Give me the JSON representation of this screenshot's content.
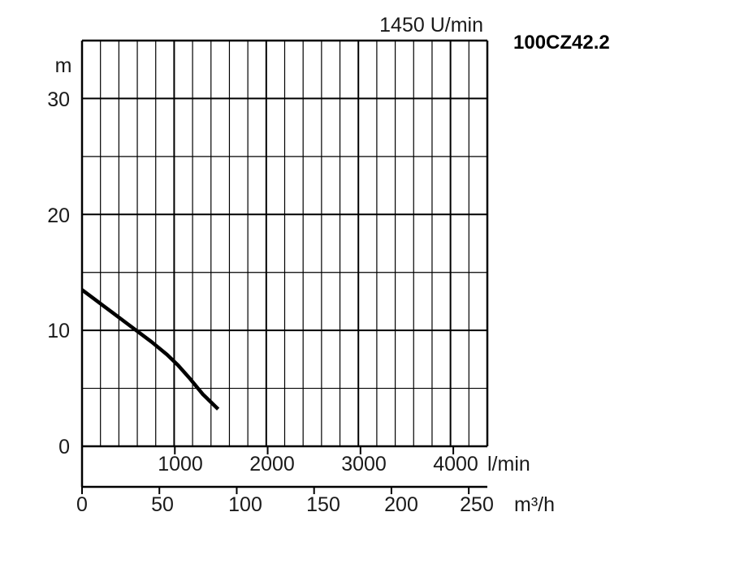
{
  "chart_data": {
    "type": "line",
    "model_label": "100CZ42.2",
    "speed_label": "1450 U/min",
    "y_unit": "m",
    "x_unit_lmin": "l/min",
    "x_unit_m3h": "m³/h",
    "y_ticks": [
      "0",
      "10",
      "20",
      "30"
    ],
    "lmin_ticks": [
      "1000",
      "2000",
      "3000",
      "4000"
    ],
    "m3h_ticks": [
      "0",
      "50",
      "100",
      "150",
      "200",
      "250"
    ],
    "xlim": [
      0,
      262
    ],
    "ylim": [
      0,
      35
    ],
    "grid": true,
    "series": [
      {
        "x": [
          0,
          10,
          20,
          30,
          36,
          45,
          55,
          62,
          70,
          78,
          88
        ],
        "y": [
          13.5,
          12.5,
          11.5,
          10.5,
          9.9,
          9.0,
          7.9,
          7.0,
          5.8,
          4.5,
          3.2
        ]
      }
    ]
  }
}
